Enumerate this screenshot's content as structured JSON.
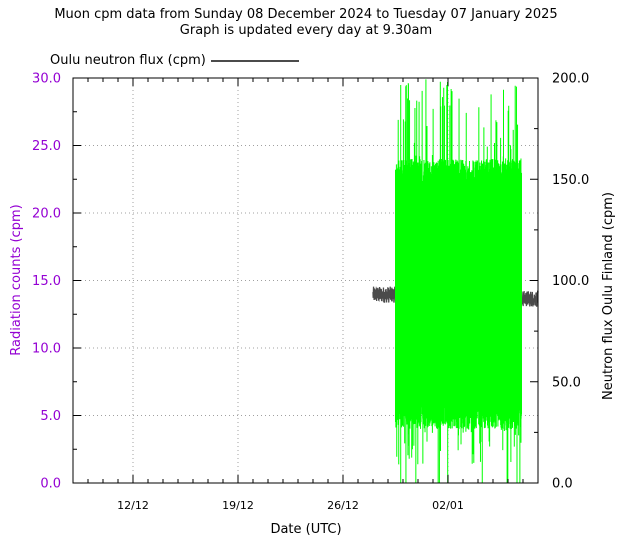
{
  "chart_data": {
    "type": "line",
    "title": "Muon cpm data from Sunday 08 December 2024 to Tuesday 07 January 2025",
    "subtitle": "Graph is updated every day at 9.30am",
    "xlabel": "Date (UTC)",
    "ylabel_left": "Radiation counts (cpm)",
    "ylabel_right": "Neutron flux Oulu Finland (cpm)",
    "x_ticks": [
      "12/12",
      "19/12",
      "26/12",
      "02/01"
    ],
    "y_left_ticks": [
      "0.0",
      "5.0",
      "10.0",
      "15.0",
      "20.0",
      "25.0",
      "30.0"
    ],
    "y_right_ticks": [
      "0.0",
      "50.0",
      "100.0",
      "150.0",
      "200.0"
    ],
    "ylim_left": [
      0,
      30
    ],
    "ylim_right": [
      0,
      200
    ],
    "xlim_days": [
      0,
      31
    ],
    "grid": true,
    "legend_entry": "Oulu neutron flux (cpm)",
    "legend_placement": "top-left",
    "colors": {
      "radiation": "#00ff00",
      "neutron": "#4b4b4b",
      "left_axis": "#9400d3",
      "grid": "#a0a0a0"
    },
    "series": [
      {
        "name": "Radiation counts",
        "axis": "left",
        "start_day": 21.5,
        "end_day": 29.9,
        "typical_range": [
          6,
          23
        ],
        "extremes_range": [
          0,
          30
        ],
        "gap_day": 24.8
      },
      {
        "name": "Oulu neutron flux (cpm)",
        "axis": "right",
        "start_day": 20.0,
        "end_day": 31.0,
        "mean_early": 93,
        "mean_late": 91,
        "band_halfwidth": 4
      }
    ]
  }
}
